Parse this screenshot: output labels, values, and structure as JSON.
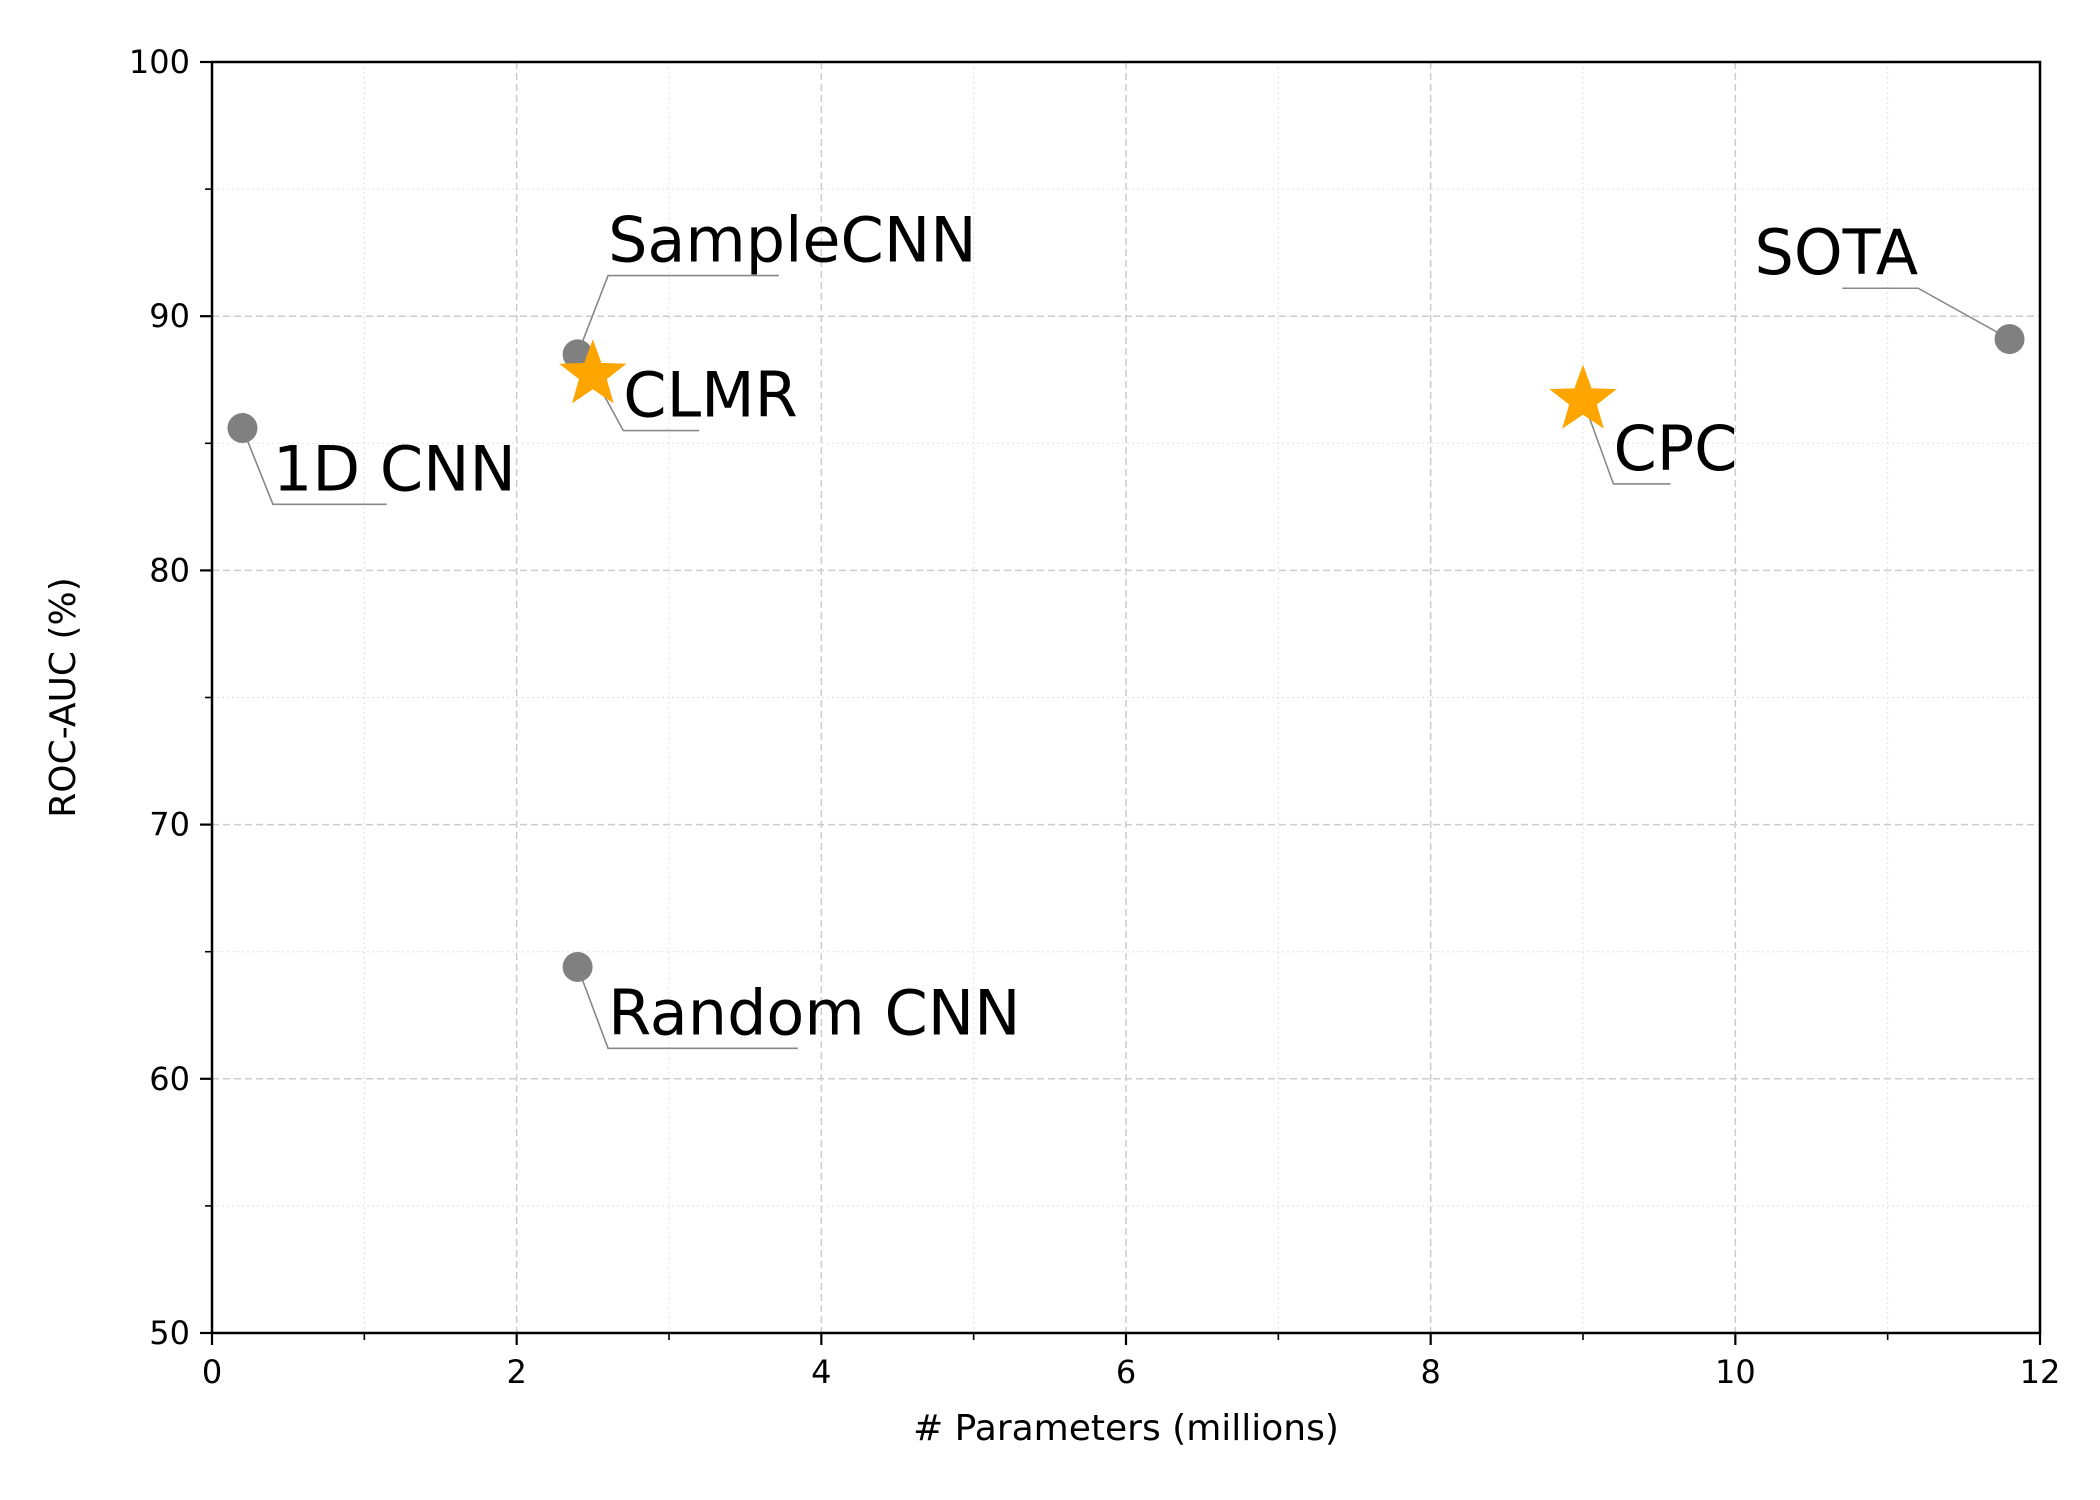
{
  "chart_data": {
    "type": "scatter",
    "title": "",
    "xlabel": "# Parameters (millions)",
    "ylabel": "ROC-AUC (%)",
    "xlim": [
      0,
      12
    ],
    "ylim": [
      50,
      100
    ],
    "x_ticks": [
      0,
      2,
      4,
      6,
      8,
      10,
      12
    ],
    "y_ticks": [
      50,
      60,
      70,
      80,
      90,
      100
    ],
    "grid": true,
    "points": [
      {
        "label": "1D CNN",
        "x": 0.2,
        "y": 85.6,
        "marker": "circle",
        "color": "#808080"
      },
      {
        "label": "SampleCNN",
        "x": 2.4,
        "y": 88.5,
        "marker": "circle",
        "color": "#808080"
      },
      {
        "label": "CLMR",
        "x": 2.5,
        "y": 87.7,
        "marker": "star",
        "color": "#ffa500"
      },
      {
        "label": "Random CNN",
        "x": 2.4,
        "y": 64.4,
        "marker": "circle",
        "color": "#808080"
      },
      {
        "label": "CPC",
        "x": 9.0,
        "y": 86.7,
        "marker": "star",
        "color": "#ffa500"
      },
      {
        "label": "SOTA",
        "x": 11.8,
        "y": 89.1,
        "marker": "circle",
        "color": "#808080"
      }
    ],
    "annotations": [
      {
        "text": "1D CNN",
        "x": 0.4,
        "y": 82.6,
        "anchor": "bottom-left"
      },
      {
        "text": "SampleCNN",
        "x": 2.6,
        "y": 91.6,
        "anchor": "bottom-left"
      },
      {
        "text": "CLMR",
        "x": 2.7,
        "y": 85.5,
        "anchor": "bottom-left"
      },
      {
        "text": "Random CNN",
        "x": 2.6,
        "y": 61.2,
        "anchor": "bottom-left"
      },
      {
        "text": "CPC",
        "x": 9.2,
        "y": 83.4,
        "anchor": "bottom-left"
      },
      {
        "text": "SOTA",
        "x": 11.2,
        "y": 91.1,
        "anchor": "bottom-right"
      }
    ]
  }
}
